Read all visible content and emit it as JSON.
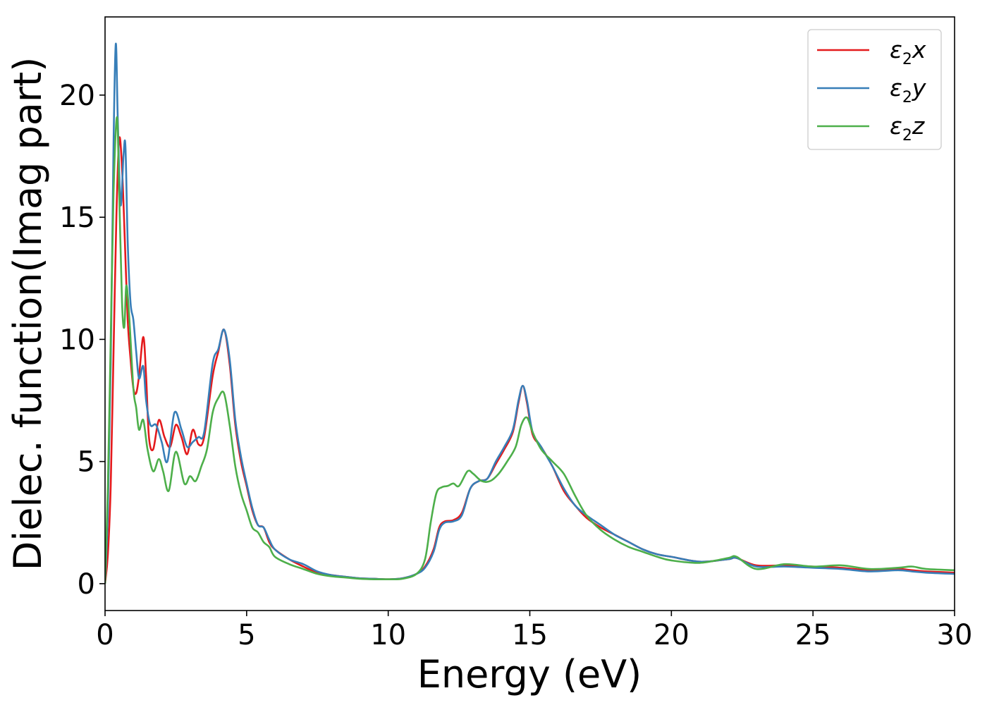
{
  "chart_data": {
    "type": "line",
    "xlabel": "Energy (eV)",
    "ylabel": "Dielec. function(Imag part)",
    "xlim": [
      0,
      30
    ],
    "ylim": [
      -1.1,
      23.2
    ],
    "xticks": [
      0,
      5,
      10,
      15,
      20,
      25,
      30
    ],
    "yticks": [
      0,
      5,
      10,
      15,
      20
    ],
    "grid": false,
    "legend_position": "top-right",
    "series": [
      {
        "name": "ε2x",
        "color": "#e41a1c",
        "x": [
          0,
          0.1,
          0.2,
          0.3,
          0.4,
          0.5,
          0.6,
          0.7,
          0.8,
          0.9,
          1.0,
          1.1,
          1.2,
          1.35,
          1.45,
          1.55,
          1.7,
          1.9,
          2.1,
          2.3,
          2.5,
          2.7,
          2.9,
          3.1,
          3.3,
          3.5,
          3.8,
          4.0,
          4.2,
          4.4,
          4.6,
          4.8,
          5.0,
          5.2,
          5.4,
          5.6,
          5.8,
          6.0,
          6.5,
          7.0,
          7.5,
          8.0,
          8.5,
          9.0,
          9.5,
          10.0,
          10.5,
          11.0,
          11.3,
          11.6,
          11.8,
          12.0,
          12.3,
          12.6,
          12.9,
          13.2,
          13.5,
          13.8,
          14.1,
          14.4,
          14.6,
          14.75,
          14.9,
          15.1,
          15.4,
          15.8,
          16.2,
          16.6,
          17.0,
          17.5,
          18.0,
          18.5,
          19.0,
          19.5,
          20.0,
          21.0,
          22.0,
          22.3,
          23.0,
          24.0,
          25.0,
          26.0,
          27.0,
          28.0,
          28.5,
          29.0,
          30.0
        ],
        "y": [
          0.0,
          1.2,
          4.0,
          9.5,
          15.0,
          18.2,
          17.0,
          14.0,
          10.8,
          9.2,
          8.0,
          7.8,
          8.5,
          10.1,
          8.5,
          6.0,
          5.5,
          6.7,
          6.0,
          5.6,
          6.5,
          6.0,
          5.3,
          6.3,
          5.7,
          6.0,
          8.5,
          9.5,
          10.4,
          9.0,
          6.5,
          5.0,
          4.0,
          3.0,
          2.4,
          2.3,
          1.7,
          1.4,
          1.0,
          0.7,
          0.45,
          0.35,
          0.28,
          0.22,
          0.2,
          0.18,
          0.22,
          0.4,
          0.7,
          1.4,
          2.3,
          2.55,
          2.6,
          2.9,
          3.9,
          4.2,
          4.3,
          4.9,
          5.5,
          6.2,
          7.4,
          8.1,
          7.4,
          6.1,
          5.6,
          4.8,
          3.8,
          3.2,
          2.7,
          2.3,
          2.0,
          1.7,
          1.4,
          1.2,
          1.1,
          0.9,
          1.0,
          1.05,
          0.75,
          0.75,
          0.7,
          0.65,
          0.55,
          0.6,
          0.55,
          0.5,
          0.45
        ]
      },
      {
        "name": "ε2y",
        "color": "#377eb8",
        "x": [
          0,
          0.1,
          0.2,
          0.3,
          0.38,
          0.45,
          0.55,
          0.65,
          0.72,
          0.8,
          0.9,
          1.0,
          1.1,
          1.2,
          1.35,
          1.45,
          1.6,
          1.8,
          2.0,
          2.2,
          2.45,
          2.7,
          2.9,
          3.1,
          3.3,
          3.5,
          3.8,
          4.0,
          4.2,
          4.4,
          4.6,
          4.8,
          5.0,
          5.2,
          5.4,
          5.6,
          5.8,
          6.0,
          6.5,
          7.0,
          7.5,
          8.0,
          8.5,
          9.0,
          9.5,
          10.0,
          10.5,
          11.0,
          11.3,
          11.6,
          11.8,
          12.0,
          12.3,
          12.6,
          12.9,
          13.2,
          13.5,
          13.8,
          14.1,
          14.4,
          14.6,
          14.75,
          14.9,
          15.1,
          15.4,
          15.8,
          16.2,
          16.6,
          17.0,
          17.5,
          18.0,
          18.5,
          19.0,
          19.5,
          20.0,
          21.0,
          22.0,
          22.3,
          23.0,
          24.0,
          25.0,
          26.0,
          27.0,
          28.0,
          28.5,
          29.0,
          30.0
        ],
        "y": [
          0.0,
          3.0,
          9.0,
          18.0,
          22.1,
          19.0,
          15.5,
          17.5,
          17.9,
          14.0,
          11.5,
          10.8,
          9.5,
          8.4,
          8.9,
          7.5,
          6.5,
          6.5,
          5.8,
          5.0,
          7.0,
          6.3,
          5.6,
          5.8,
          6.0,
          6.2,
          9.0,
          9.6,
          10.4,
          9.2,
          6.7,
          5.2,
          4.1,
          3.1,
          2.4,
          2.3,
          1.8,
          1.4,
          1.0,
          0.8,
          0.5,
          0.35,
          0.28,
          0.22,
          0.2,
          0.18,
          0.22,
          0.4,
          0.65,
          1.3,
          2.2,
          2.5,
          2.55,
          2.8,
          3.9,
          4.2,
          4.3,
          5.0,
          5.6,
          6.3,
          7.5,
          8.1,
          7.5,
          6.2,
          5.6,
          4.8,
          3.9,
          3.2,
          2.8,
          2.4,
          2.0,
          1.7,
          1.4,
          1.2,
          1.1,
          0.9,
          1.0,
          1.05,
          0.7,
          0.7,
          0.65,
          0.6,
          0.5,
          0.55,
          0.5,
          0.45,
          0.4
        ]
      },
      {
        "name": "ε2z",
        "color": "#4daf4a",
        "x": [
          0,
          0.1,
          0.2,
          0.3,
          0.42,
          0.5,
          0.6,
          0.68,
          0.75,
          0.85,
          1.0,
          1.1,
          1.2,
          1.35,
          1.5,
          1.7,
          1.9,
          2.05,
          2.25,
          2.5,
          2.8,
          3.0,
          3.2,
          3.4,
          3.6,
          3.8,
          4.0,
          4.2,
          4.4,
          4.6,
          4.8,
          5.0,
          5.2,
          5.4,
          5.6,
          5.8,
          6.0,
          6.5,
          7.0,
          7.5,
          8.0,
          8.5,
          9.0,
          9.5,
          10.0,
          10.5,
          11.0,
          11.3,
          11.5,
          11.7,
          11.9,
          12.1,
          12.3,
          12.5,
          12.8,
          13.0,
          13.3,
          13.6,
          13.9,
          14.2,
          14.5,
          14.7,
          14.9,
          15.1,
          15.4,
          15.8,
          16.2,
          16.6,
          17.0,
          17.5,
          18.0,
          18.5,
          19.0,
          19.5,
          20.0,
          21.0,
          22.0,
          22.3,
          23.0,
          24.0,
          25.0,
          26.0,
          27.0,
          28.0,
          28.5,
          29.0,
          30.0
        ],
        "y": [
          0.0,
          4.0,
          10.0,
          16.0,
          19.1,
          16.0,
          11.5,
          10.5,
          12.2,
          11.0,
          8.0,
          7.2,
          6.3,
          6.7,
          5.5,
          4.6,
          5.1,
          4.6,
          3.8,
          5.4,
          4.1,
          4.4,
          4.2,
          4.8,
          5.5,
          7.0,
          7.6,
          7.8,
          6.5,
          4.8,
          3.7,
          3.0,
          2.3,
          2.1,
          1.7,
          1.5,
          1.1,
          0.8,
          0.6,
          0.4,
          0.3,
          0.25,
          0.2,
          0.18,
          0.18,
          0.2,
          0.4,
          1.0,
          2.5,
          3.7,
          3.95,
          4.0,
          4.1,
          4.0,
          4.6,
          4.5,
          4.2,
          4.2,
          4.5,
          5.0,
          5.6,
          6.5,
          6.8,
          6.2,
          5.5,
          5.0,
          4.5,
          3.6,
          2.8,
          2.2,
          1.8,
          1.5,
          1.3,
          1.1,
          0.95,
          0.85,
          1.05,
          1.1,
          0.6,
          0.8,
          0.7,
          0.75,
          0.6,
          0.65,
          0.7,
          0.6,
          0.55
        ]
      }
    ]
  }
}
